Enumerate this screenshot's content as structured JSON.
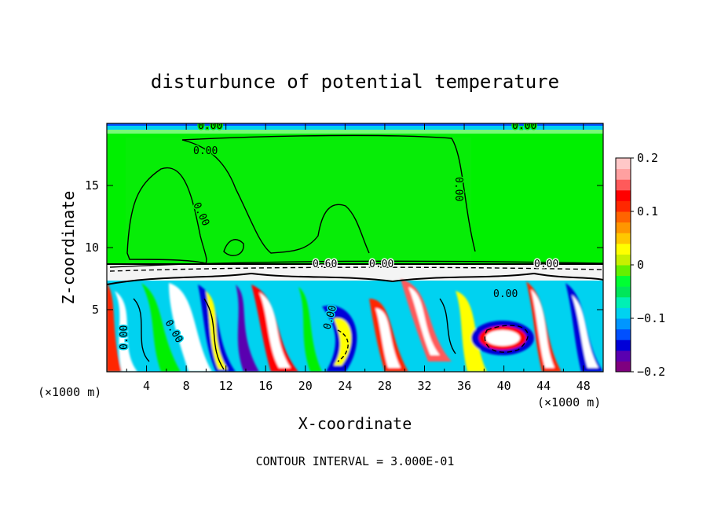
{
  "chart_data": {
    "type": "heatmap",
    "title": "disturbunce of potential temperature",
    "xlabel": "X-coordinate",
    "ylabel": "Z-coordinate",
    "x_unit_label": "(×1000 m)",
    "y_unit_label": "(×1000 m)",
    "xlim": [
      0,
      50
    ],
    "ylim": [
      0,
      20
    ],
    "x_ticks": [
      "4",
      "8",
      "12",
      "16",
      "20",
      "24",
      "28",
      "32",
      "36",
      "40",
      "44",
      "48"
    ],
    "y_ticks": [
      "5",
      "10",
      "15"
    ],
    "colorbar": {
      "min": -0.2,
      "max": 0.2,
      "ticks": [
        "0.2",
        "0.1",
        "0",
        "−0.1",
        "−0.2"
      ],
      "colors": [
        "#7f007f",
        "#5a00b0",
        "#0000d8",
        "#0050ff",
        "#0096ff",
        "#00d2f0",
        "#00f0b4",
        "#00e65a",
        "#00ff32",
        "#64f000",
        "#c8f000",
        "#ffff00",
        "#ffc800",
        "#ff9600",
        "#ff6400",
        "#ff2800",
        "#ff0000",
        "#ff5a5a",
        "#ffa0a0",
        "#ffc8c8"
      ]
    },
    "contour_labels": [
      "0.00",
      "0.00",
      "0.00",
      "0.00",
      "0.00",
      "0.00",
      "0.00",
      "0.00",
      "0.60",
      "0.00",
      "0.00",
      "0.00"
    ],
    "contour_interval": "CONTOUR INTERVAL = 3.000E-01"
  }
}
